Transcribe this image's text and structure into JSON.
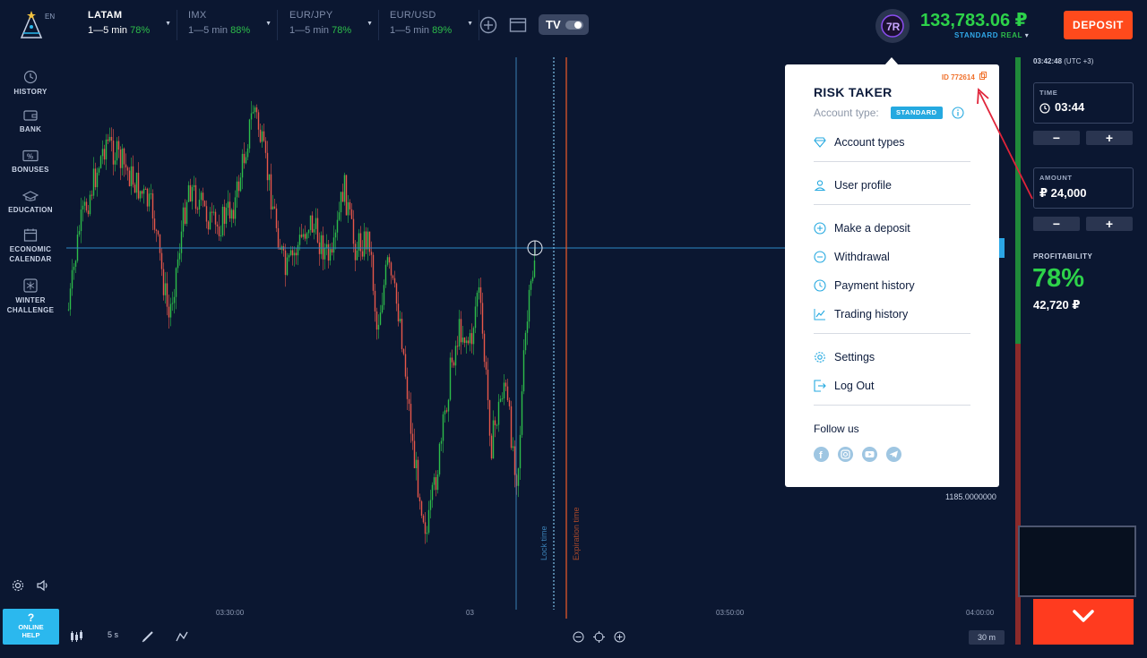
{
  "header": {
    "lang": "EN",
    "assets": [
      {
        "name": "LATAM",
        "time": "1—5 min",
        "pct": "78%",
        "active": true
      },
      {
        "name": "IMX",
        "time": "1—5 min",
        "pct": "88%"
      },
      {
        "name": "EUR/JPY",
        "time": "1—5 min",
        "pct": "78%"
      },
      {
        "name": "EUR/USD",
        "time": "1—5 min",
        "pct": "89%"
      }
    ],
    "balance": "133,783.06 ₽",
    "account_standard": "STANDARD",
    "account_real": "REAL",
    "deposit_label": "DEPOSIT"
  },
  "sidebar": {
    "items": [
      {
        "line1": "HISTORY",
        "line2": ""
      },
      {
        "line1": "BANK",
        "line2": ""
      },
      {
        "line1": "BONUSES",
        "line2": ""
      },
      {
        "line1": "EDUCATION",
        "line2": ""
      },
      {
        "line1": "ECONOMIC",
        "line2": "CALENDAR"
      },
      {
        "line1": "WINTER",
        "line2": "CHALLENGE"
      }
    ]
  },
  "chart": {
    "x_ticks": [
      "03:30:00",
      "03",
      "03:50:00",
      "04:00:00"
    ],
    "lock_time": "Lock time",
    "expiration_time": "Expiration time",
    "price_label": "1185.0000000"
  },
  "bottom": {
    "help_q": "?",
    "help_line1": "ONLINE",
    "help_line2": "HELP",
    "interval": "5 s",
    "zoom": "30 m"
  },
  "panel": {
    "clock": "03:42:48",
    "utc": "(UTC +3)",
    "time_label": "TIME",
    "time_value": "03:44",
    "amount_label": "AMOUNT",
    "amount_value": "₽ 24,000",
    "minus": "−",
    "plus": "+",
    "profit_label": "PROFITABILITY",
    "profit_pct": "78%",
    "profit_amount": "42,720 ₽"
  },
  "menu": {
    "id": "ID 772614",
    "username": "RISK TAKER",
    "account_type_label": "Account type:",
    "account_type_badge": "STANDARD",
    "items": {
      "account_types": "Account types",
      "user_profile": "User profile",
      "make_deposit": "Make a deposit",
      "withdrawal": "Withdrawal",
      "payment_history": "Payment history",
      "trading_history": "Trading history",
      "settings": "Settings",
      "log_out": "Log Out"
    },
    "follow": "Follow us",
    "social": [
      "facebook-icon",
      "instagram-icon",
      "youtube-icon",
      "telegram-icon"
    ]
  },
  "colors": {
    "background": "#0b1731",
    "green": "#2dd24a",
    "red": "#ff3b1f",
    "accent_blue": "#25a9e0",
    "orange": "#f0722d"
  }
}
